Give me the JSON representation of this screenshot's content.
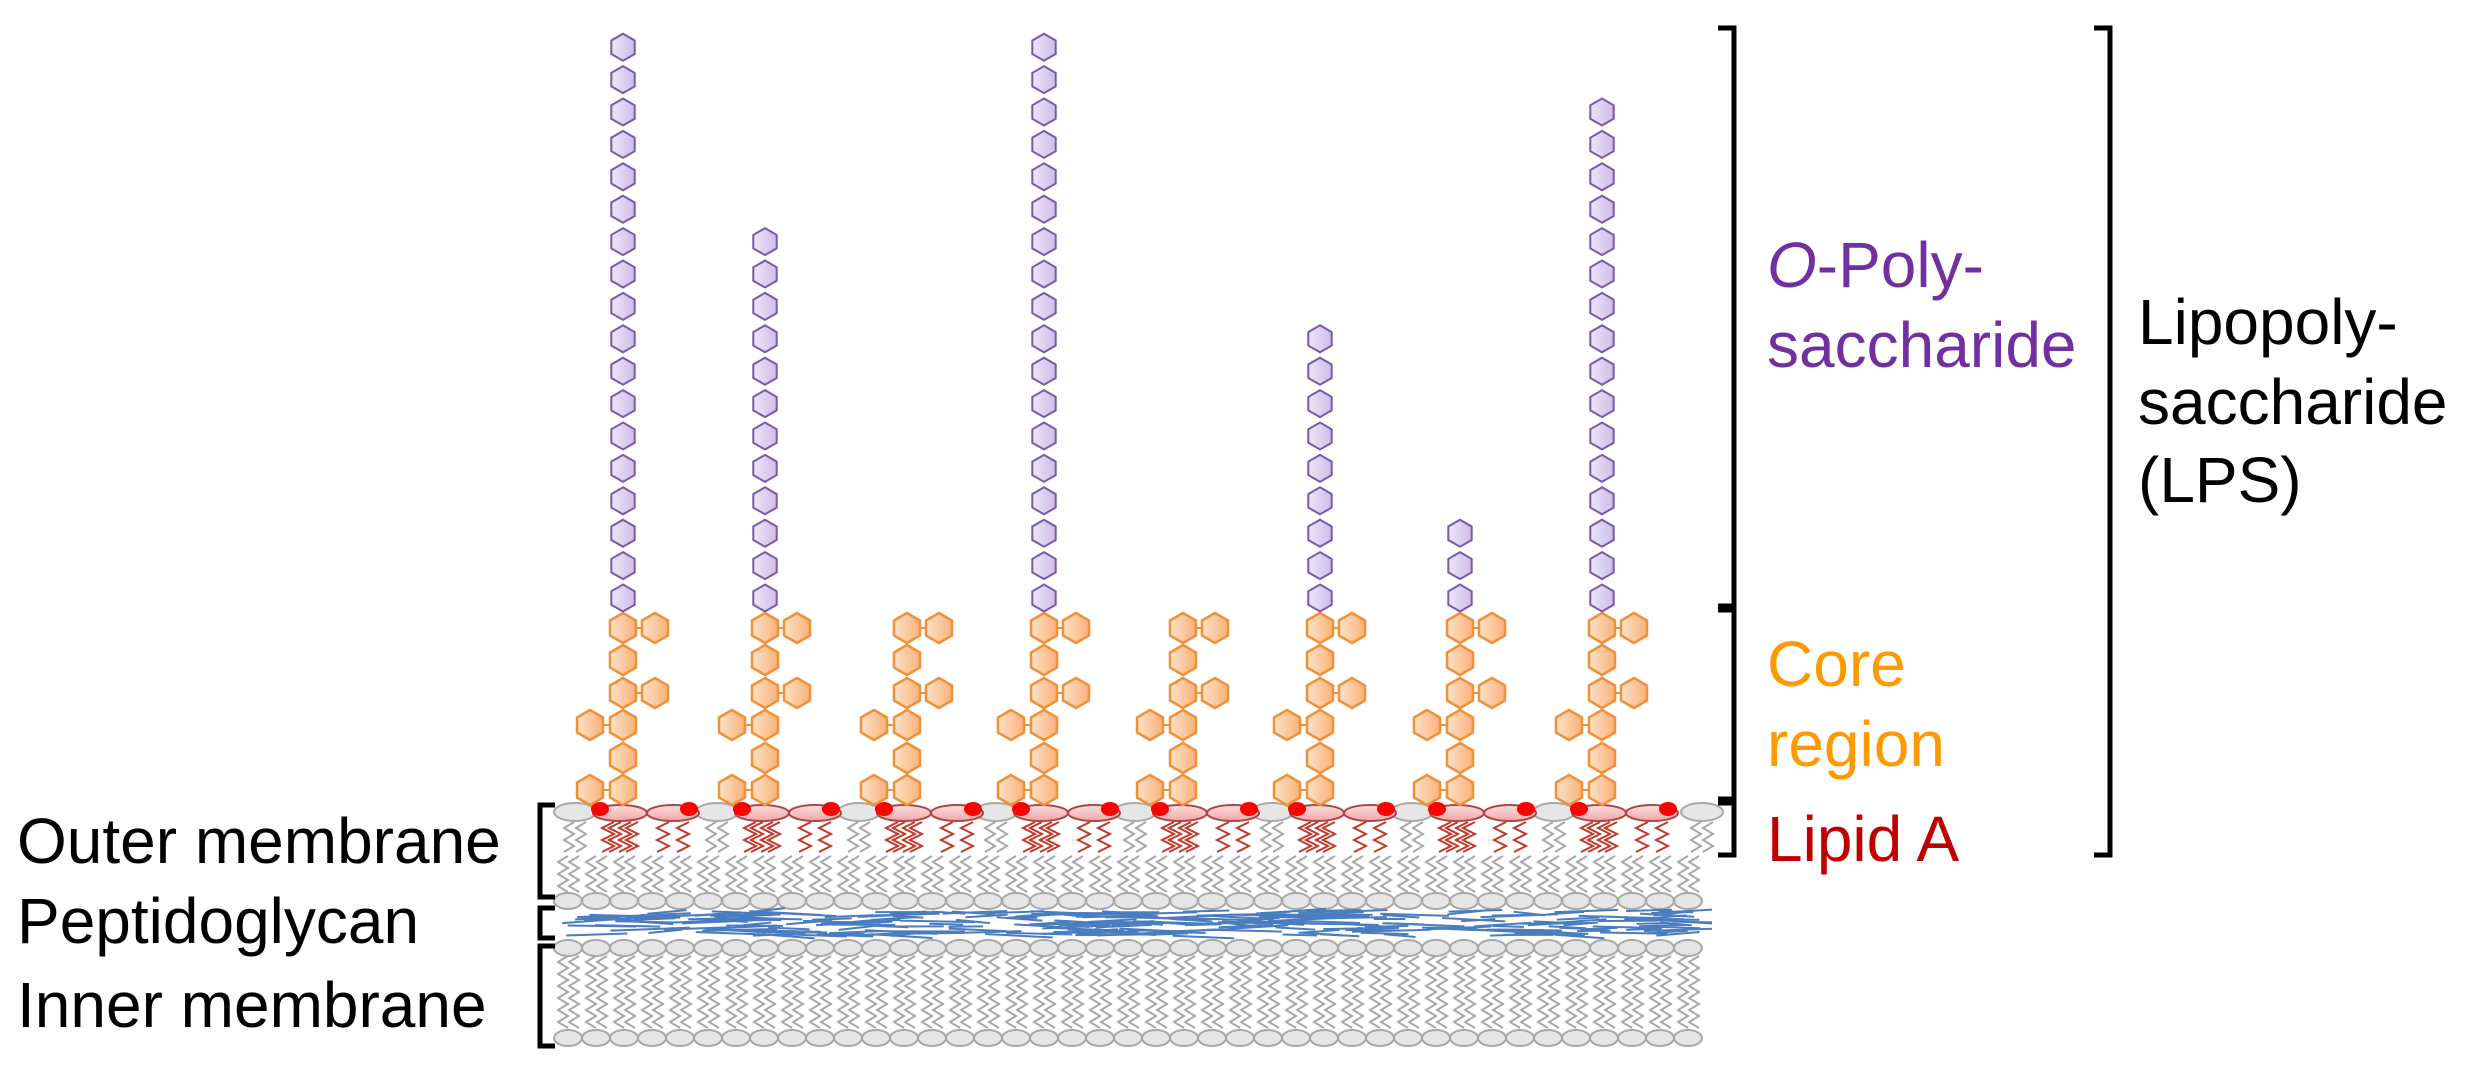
{
  "labels": {
    "outer_membrane": "Outer membrane",
    "peptidoglycan": "Peptidoglycan",
    "inner_membrane": "Inner membrane",
    "opoly_italic": "O",
    "opoly_rest": "-Poly-",
    "opoly_line2": "saccharide",
    "core_line1": "Core",
    "core_line2": "region",
    "lipid_a": "Lipid A",
    "lps_line1": "Lipopoly-",
    "lps_line2": "saccharide",
    "lps_line3": "(LPS)"
  },
  "colors": {
    "o_polysaccharide": "#7030A0",
    "core": "#FF9900",
    "lipid_a": "#C00000",
    "text": "#000000",
    "peptidoglycan": "#4A7CC0",
    "lipid_head": "#E6E6E6"
  },
  "lps_molecules": [
    {
      "o_antigen_units": 18
    },
    {
      "o_antigen_units": 12
    },
    {
      "o_antigen_units": 0
    },
    {
      "o_antigen_units": 18
    },
    {
      "o_antigen_units": 0
    },
    {
      "o_antigen_units": 9
    },
    {
      "o_antigen_units": 3
    },
    {
      "o_antigen_units": 16
    }
  ]
}
